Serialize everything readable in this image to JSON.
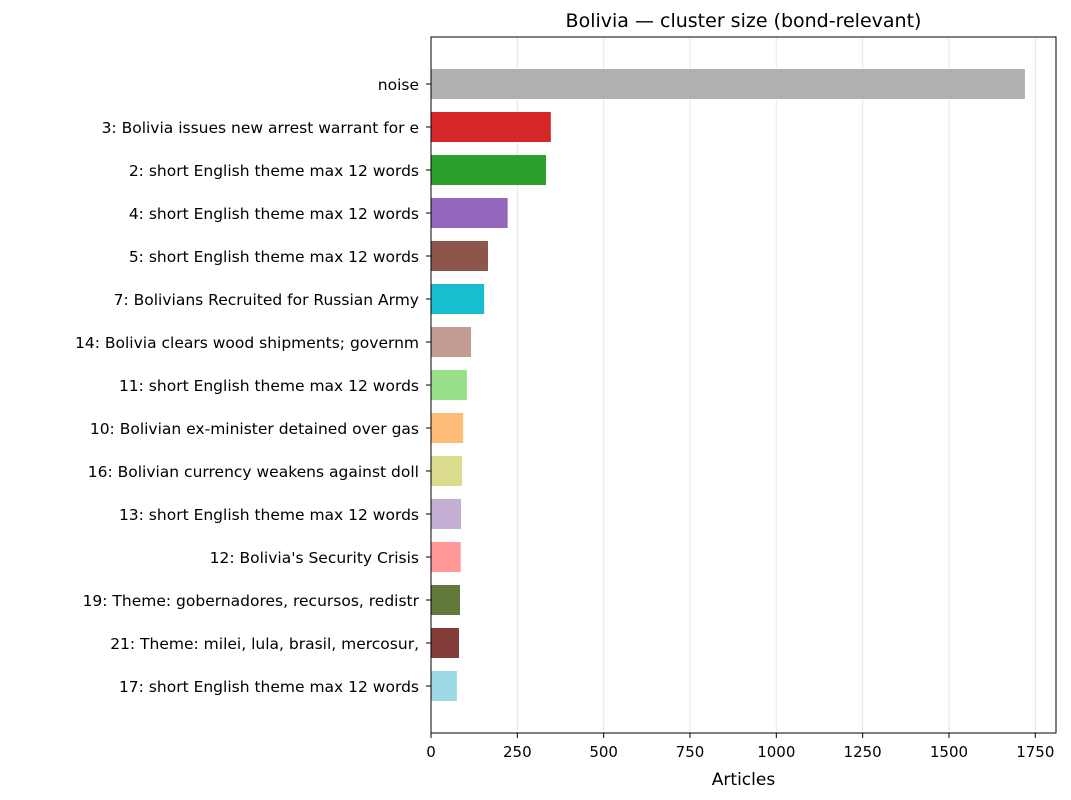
{
  "chart_data": {
    "type": "bar",
    "orientation": "horizontal",
    "title": "Bolivia — cluster size (bond-relevant)",
    "xlabel": "Articles",
    "ylabel": "",
    "xlim": [
      0,
      1810
    ],
    "xticks": [
      0,
      250,
      500,
      750,
      1000,
      1250,
      1500,
      1750
    ],
    "grid": "x",
    "categories": [
      "noise",
      "3: Bolivia issues new arrest warrant for e",
      "2: short English theme max 12 words",
      "4: short English theme max 12 words",
      "5: short English theme max 12 words",
      "7: Bolivians Recruited for Russian Army",
      "14: Bolivia clears wood shipments; governm",
      "11: short English theme max 12 words",
      "10: Bolivian ex-minister detained over gas",
      "16: Bolivian currency weakens against doll",
      "13: short English theme max 12 words",
      "12: Bolivia's Security Crisis",
      "19: Theme: gobernadores, recursos, redistr",
      "21: Theme: milei, lula, brasil, mercosur, ",
      "17: short English theme max 12 words"
    ],
    "values": [
      1720,
      347,
      333,
      222,
      165,
      154,
      116,
      104,
      93,
      90,
      87,
      86,
      84,
      81,
      75
    ],
    "colors": [
      "#b0b0b0",
      "#d62728",
      "#2ca02c",
      "#9467bd",
      "#8c564b",
      "#17becf",
      "#c49c94",
      "#98df8a",
      "#ffbb78",
      "#dbdb8d",
      "#c5b0d5",
      "#ff9896",
      "#637939",
      "#843c39",
      "#9edae5"
    ]
  }
}
